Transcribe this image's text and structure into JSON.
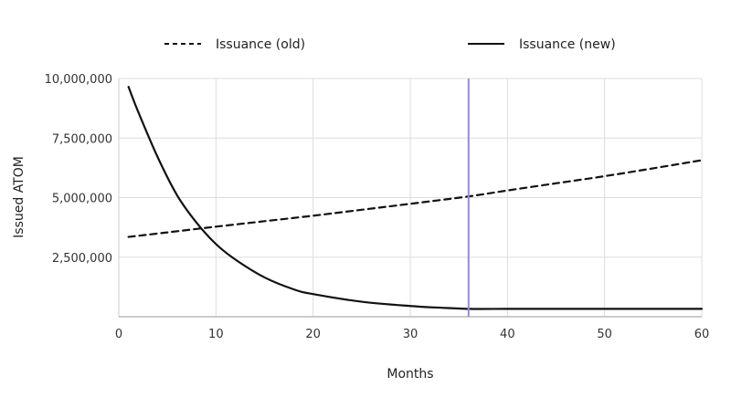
{
  "chart_data": {
    "type": "line",
    "title": "",
    "xlabel": "Months",
    "ylabel": "Issued ATOM",
    "xlim": [
      0,
      60
    ],
    "ylim": [
      0,
      10000000
    ],
    "x_ticks": [
      0,
      10,
      20,
      30,
      40,
      50,
      60
    ],
    "y_ticks": [
      2500000,
      5000000,
      7500000,
      10000000
    ],
    "y_tick_labels": [
      "2,500,000",
      "5,000,000",
      "7,500,000",
      "10,000,000"
    ],
    "grid": true,
    "legend_position": "top",
    "marker_line": {
      "x": 36,
      "color": "#9a88d6"
    },
    "series": [
      {
        "name": "Issuance (old)",
        "style": "dashed",
        "color": "#111111",
        "x": [
          1,
          5,
          10,
          15,
          20,
          25,
          30,
          36,
          40,
          45,
          50,
          55,
          60
        ],
        "y": [
          3350000,
          3540000,
          3780000,
          4010000,
          4240000,
          4490000,
          4740000,
          5050000,
          5300000,
          5600000,
          5900000,
          6230000,
          6570000
        ]
      },
      {
        "name": "Issuance (new)",
        "style": "solid",
        "color": "#111111",
        "x": [
          1,
          2,
          4,
          6,
          8,
          10,
          12,
          15,
          18,
          20,
          25,
          30,
          33,
          36,
          40,
          45,
          50,
          55,
          60
        ],
        "y": [
          9650000,
          8600000,
          6700000,
          5100000,
          3950000,
          3050000,
          2400000,
          1650000,
          1150000,
          950000,
          630000,
          450000,
          380000,
          330000,
          330000,
          330000,
          330000,
          330000,
          330000
        ]
      }
    ]
  }
}
